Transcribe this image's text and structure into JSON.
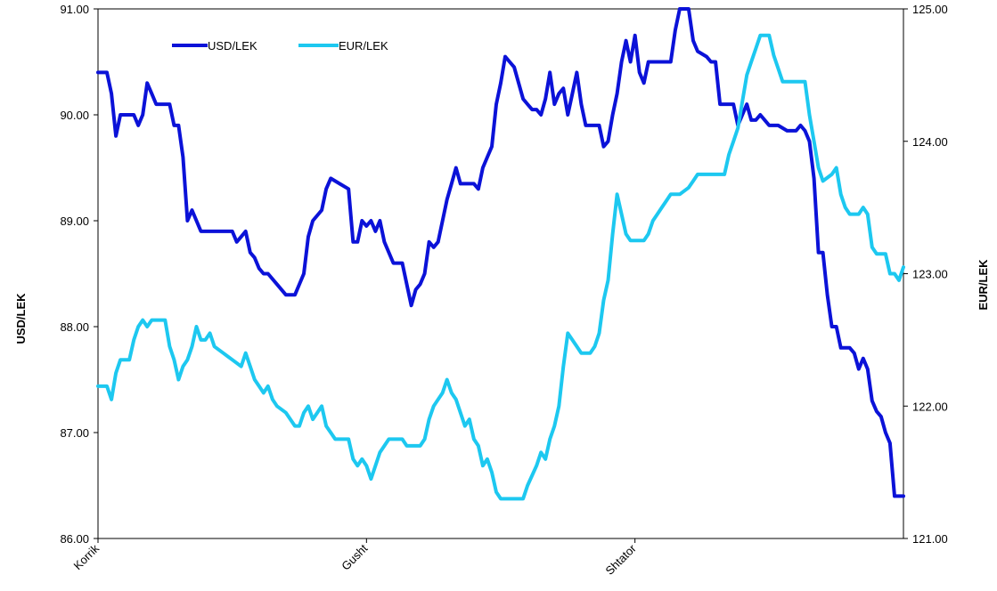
{
  "chart_data": {
    "type": "line",
    "title": "",
    "x_labels": [
      "Korrik",
      "Gusht",
      "Shtator"
    ],
    "y_left": {
      "label": "USD/LEK",
      "range": [
        86.0,
        91.0
      ],
      "ticks": [
        "86.00",
        "87.00",
        "88.00",
        "89.00",
        "90.00",
        "91.00"
      ]
    },
    "y_right": {
      "label": "EUR/LEK",
      "range": [
        121.0,
        125.0
      ],
      "ticks": [
        "121.00",
        "122.00",
        "123.00",
        "124.00",
        "125.00"
      ]
    },
    "grid": true,
    "legend_position": "top-left",
    "x_range": [
      0,
      90
    ],
    "series": [
      {
        "name": "USD/LEK",
        "axis": "left",
        "color": "#0b12d8",
        "points": [
          [
            0,
            90.4
          ],
          [
            1,
            90.4
          ],
          [
            1.5,
            90.2
          ],
          [
            2,
            89.8
          ],
          [
            2.5,
            90.0
          ],
          [
            3,
            90.0
          ],
          [
            4,
            90.0
          ],
          [
            4.5,
            89.9
          ],
          [
            5,
            90.0
          ],
          [
            5.5,
            90.3
          ],
          [
            6,
            90.2
          ],
          [
            6.5,
            90.1
          ],
          [
            8,
            90.1
          ],
          [
            8.5,
            89.9
          ],
          [
            9,
            89.9
          ],
          [
            9.5,
            89.6
          ],
          [
            10,
            89.0
          ],
          [
            10.5,
            89.1
          ],
          [
            11,
            89.0
          ],
          [
            11.5,
            88.9
          ],
          [
            12,
            88.9
          ],
          [
            15,
            88.9
          ],
          [
            15.5,
            88.8
          ],
          [
            16,
            88.85
          ],
          [
            16.5,
            88.9
          ],
          [
            17,
            88.7
          ],
          [
            17.5,
            88.65
          ],
          [
            18,
            88.55
          ],
          [
            18.5,
            88.5
          ],
          [
            19,
            88.5
          ],
          [
            20,
            88.4
          ],
          [
            21,
            88.3
          ],
          [
            22,
            88.3
          ],
          [
            22.5,
            88.4
          ],
          [
            23,
            88.5
          ],
          [
            23.5,
            88.85
          ],
          [
            24,
            89.0
          ],
          [
            25,
            89.1
          ],
          [
            25.5,
            89.3
          ],
          [
            26,
            89.4
          ],
          [
            27,
            89.35
          ],
          [
            28,
            89.3
          ],
          [
            28.5,
            88.8
          ],
          [
            29,
            88.8
          ],
          [
            29.5,
            89.0
          ],
          [
            30,
            88.95
          ],
          [
            30.5,
            89.0
          ],
          [
            31,
            88.9
          ],
          [
            31.5,
            89.0
          ],
          [
            32,
            88.8
          ],
          [
            33,
            88.6
          ],
          [
            34,
            88.6
          ],
          [
            35,
            88.2
          ],
          [
            35.5,
            88.35
          ],
          [
            36,
            88.4
          ],
          [
            36.5,
            88.5
          ],
          [
            37,
            88.8
          ],
          [
            37.5,
            88.75
          ],
          [
            38,
            88.8
          ],
          [
            38.5,
            89.0
          ],
          [
            39,
            89.2
          ],
          [
            39.5,
            89.35
          ],
          [
            40,
            89.5
          ],
          [
            40.5,
            89.35
          ],
          [
            41,
            89.35
          ],
          [
            42,
            89.35
          ],
          [
            42.5,
            89.3
          ],
          [
            43,
            89.5
          ],
          [
            43.5,
            89.6
          ],
          [
            44,
            89.7
          ],
          [
            44.5,
            90.1
          ],
          [
            45,
            90.3
          ],
          [
            45.5,
            90.55
          ],
          [
            46,
            90.5
          ],
          [
            46.5,
            90.45
          ],
          [
            47,
            90.3
          ],
          [
            47.5,
            90.15
          ],
          [
            48,
            90.1
          ],
          [
            48.5,
            90.05
          ],
          [
            49,
            90.05
          ],
          [
            49.5,
            90.0
          ],
          [
            50,
            90.15
          ],
          [
            50.5,
            90.4
          ],
          [
            51,
            90.1
          ],
          [
            51.5,
            90.2
          ],
          [
            52,
            90.25
          ],
          [
            52.5,
            90.0
          ],
          [
            53,
            90.2
          ],
          [
            53.5,
            90.4
          ],
          [
            54,
            90.1
          ],
          [
            54.5,
            89.9
          ],
          [
            55,
            89.9
          ],
          [
            56,
            89.9
          ],
          [
            56.5,
            89.7
          ],
          [
            57,
            89.75
          ],
          [
            57.5,
            90.0
          ],
          [
            58,
            90.2
          ],
          [
            58.5,
            90.5
          ],
          [
            59,
            90.7
          ],
          [
            59.5,
            90.5
          ],
          [
            60,
            90.75
          ],
          [
            60.5,
            90.4
          ],
          [
            61,
            90.3
          ],
          [
            61.5,
            90.5
          ],
          [
            64,
            90.5
          ],
          [
            64.5,
            90.8
          ],
          [
            65,
            91.0
          ],
          [
            66,
            91.0
          ],
          [
            66.5,
            90.7
          ],
          [
            67,
            90.6
          ],
          [
            68,
            90.55
          ],
          [
            68.5,
            90.5
          ],
          [
            69,
            90.5
          ],
          [
            69.5,
            90.1
          ],
          [
            70,
            90.1
          ],
          [
            71,
            90.1
          ],
          [
            71.5,
            89.9
          ],
          [
            72,
            90.0
          ],
          [
            72.5,
            90.1
          ],
          [
            73,
            89.95
          ],
          [
            73.5,
            89.95
          ],
          [
            74,
            90.0
          ],
          [
            74.5,
            89.95
          ],
          [
            75,
            89.9
          ],
          [
            76,
            89.9
          ],
          [
            77,
            89.85
          ],
          [
            78,
            89.85
          ],
          [
            78.5,
            89.9
          ],
          [
            79,
            89.85
          ],
          [
            79.5,
            89.75
          ],
          [
            80,
            89.4
          ],
          [
            80.5,
            88.7
          ],
          [
            81,
            88.7
          ],
          [
            81.5,
            88.3
          ],
          [
            82,
            88.0
          ],
          [
            82.5,
            88.0
          ],
          [
            83,
            87.8
          ],
          [
            84,
            87.8
          ],
          [
            84.5,
            87.75
          ],
          [
            85,
            87.6
          ],
          [
            85.5,
            87.7
          ],
          [
            86,
            87.6
          ],
          [
            86.5,
            87.3
          ],
          [
            87,
            87.2
          ],
          [
            87.5,
            87.15
          ],
          [
            88,
            87.0
          ],
          [
            88.5,
            86.9
          ],
          [
            89,
            86.4
          ],
          [
            90,
            86.4
          ]
        ]
      },
      {
        "name": "EUR/LEK",
        "axis": "right",
        "color": "#1dc8f0",
        "points": [
          [
            0,
            122.15
          ],
          [
            1,
            122.15
          ],
          [
            1.5,
            122.05
          ],
          [
            2,
            122.25
          ],
          [
            2.5,
            122.35
          ],
          [
            3,
            122.35
          ],
          [
            3.5,
            122.35
          ],
          [
            4,
            122.5
          ],
          [
            4.5,
            122.6
          ],
          [
            5,
            122.65
          ],
          [
            5.5,
            122.6
          ],
          [
            6,
            122.65
          ],
          [
            7,
            122.65
          ],
          [
            7.5,
            122.65
          ],
          [
            8,
            122.45
          ],
          [
            8.5,
            122.35
          ],
          [
            9,
            122.2
          ],
          [
            9.5,
            122.3
          ],
          [
            10,
            122.35
          ],
          [
            10.5,
            122.45
          ],
          [
            11,
            122.6
          ],
          [
            11.5,
            122.5
          ],
          [
            12,
            122.5
          ],
          [
            12.5,
            122.55
          ],
          [
            13,
            122.45
          ],
          [
            14,
            122.4
          ],
          [
            15,
            122.35
          ],
          [
            16,
            122.3
          ],
          [
            16.5,
            122.4
          ],
          [
            17,
            122.3
          ],
          [
            17.5,
            122.2
          ],
          [
            18,
            122.15
          ],
          [
            18.5,
            122.1
          ],
          [
            19,
            122.15
          ],
          [
            19.5,
            122.05
          ],
          [
            20,
            122.0
          ],
          [
            21,
            121.95
          ],
          [
            22,
            121.85
          ],
          [
            22.5,
            121.85
          ],
          [
            23,
            121.95
          ],
          [
            23.5,
            122.0
          ],
          [
            24,
            121.9
          ],
          [
            24.5,
            121.95
          ],
          [
            25,
            122.0
          ],
          [
            25.5,
            121.85
          ],
          [
            26,
            121.8
          ],
          [
            26.5,
            121.75
          ],
          [
            27,
            121.75
          ],
          [
            28,
            121.75
          ],
          [
            28.5,
            121.6
          ],
          [
            29,
            121.55
          ],
          [
            29.5,
            121.6
          ],
          [
            30,
            121.55
          ],
          [
            30.5,
            121.45
          ],
          [
            31,
            121.55
          ],
          [
            31.5,
            121.65
          ],
          [
            32,
            121.7
          ],
          [
            32.5,
            121.75
          ],
          [
            33,
            121.75
          ],
          [
            34,
            121.75
          ],
          [
            34.5,
            121.7
          ],
          [
            35,
            121.7
          ],
          [
            35.5,
            121.7
          ],
          [
            36,
            121.7
          ],
          [
            36.5,
            121.75
          ],
          [
            37,
            121.9
          ],
          [
            37.5,
            122.0
          ],
          [
            38,
            122.05
          ],
          [
            38.5,
            122.1
          ],
          [
            39,
            122.2
          ],
          [
            39.5,
            122.1
          ],
          [
            40,
            122.05
          ],
          [
            41,
            121.85
          ],
          [
            41.5,
            121.9
          ],
          [
            42,
            121.75
          ],
          [
            42.5,
            121.7
          ],
          [
            43,
            121.55
          ],
          [
            43.5,
            121.6
          ],
          [
            44,
            121.5
          ],
          [
            44.5,
            121.35
          ],
          [
            45,
            121.3
          ],
          [
            46,
            121.3
          ],
          [
            47,
            121.3
          ],
          [
            47.5,
            121.3
          ],
          [
            48,
            121.4
          ],
          [
            49,
            121.55
          ],
          [
            49.5,
            121.65
          ],
          [
            50,
            121.6
          ],
          [
            50.5,
            121.75
          ],
          [
            51,
            121.85
          ],
          [
            51.5,
            122.0
          ],
          [
            52,
            122.3
          ],
          [
            52.5,
            122.55
          ],
          [
            53,
            122.5
          ],
          [
            53.5,
            122.45
          ],
          [
            54,
            122.4
          ],
          [
            55,
            122.4
          ],
          [
            55.5,
            122.45
          ],
          [
            56,
            122.55
          ],
          [
            56.5,
            122.8
          ],
          [
            57,
            122.95
          ],
          [
            57.5,
            123.3
          ],
          [
            58,
            123.6
          ],
          [
            58.5,
            123.45
          ],
          [
            59,
            123.3
          ],
          [
            59.5,
            123.25
          ],
          [
            60,
            123.25
          ],
          [
            61,
            123.25
          ],
          [
            61.5,
            123.3
          ],
          [
            62,
            123.4
          ],
          [
            62.5,
            123.45
          ],
          [
            63,
            123.5
          ],
          [
            63.5,
            123.55
          ],
          [
            64,
            123.6
          ],
          [
            65,
            123.6
          ],
          [
            66,
            123.65
          ],
          [
            66.5,
            123.7
          ],
          [
            67,
            123.75
          ],
          [
            68,
            123.75
          ],
          [
            69,
            123.75
          ],
          [
            70,
            123.75
          ],
          [
            70.5,
            123.9
          ],
          [
            71,
            124.0
          ],
          [
            71.5,
            124.1
          ],
          [
            72,
            124.3
          ],
          [
            72.5,
            124.5
          ],
          [
            73,
            124.6
          ],
          [
            73.5,
            124.7
          ],
          [
            74,
            124.8
          ],
          [
            75,
            124.8
          ],
          [
            75.5,
            124.65
          ],
          [
            76,
            124.55
          ],
          [
            76.5,
            124.45
          ],
          [
            77,
            124.45
          ],
          [
            78,
            124.45
          ],
          [
            79,
            124.45
          ],
          [
            79.5,
            124.2
          ],
          [
            80,
            124.0
          ],
          [
            80.5,
            123.8
          ],
          [
            81,
            123.7
          ],
          [
            82,
            123.75
          ],
          [
            82.5,
            123.8
          ],
          [
            83,
            123.6
          ],
          [
            83.5,
            123.5
          ],
          [
            84,
            123.45
          ],
          [
            85,
            123.45
          ],
          [
            85.5,
            123.5
          ],
          [
            86,
            123.45
          ],
          [
            86.5,
            123.2
          ],
          [
            87,
            123.15
          ],
          [
            88,
            123.15
          ],
          [
            88.5,
            123.0
          ],
          [
            89,
            123.0
          ],
          [
            89.5,
            122.95
          ],
          [
            90,
            123.05
          ]
        ]
      }
    ]
  }
}
